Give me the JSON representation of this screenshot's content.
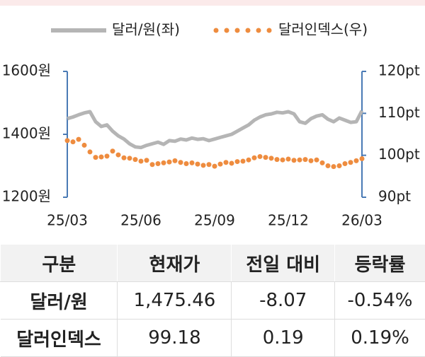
{
  "chart_data": {
    "type": "line",
    "categories": [
      "25/03",
      null,
      null,
      null,
      null,
      null,
      null,
      null,
      null,
      null,
      null,
      null,
      null,
      "25/06",
      null,
      null,
      null,
      null,
      null,
      null,
      null,
      null,
      null,
      null,
      null,
      null,
      "25/09",
      null,
      null,
      null,
      null,
      null,
      null,
      null,
      null,
      null,
      null,
      null,
      null,
      "25/12",
      null,
      null,
      null,
      null,
      null,
      null,
      null,
      null,
      null,
      null,
      null,
      null,
      "26/03"
    ],
    "series": [
      {
        "name": "달러/원(좌)",
        "color": "#b5b5b5",
        "style": "line",
        "axis": "y",
        "values": [
          1450,
          1455,
          1462,
          1468,
          1472,
          1440,
          1425,
          1430,
          1410,
          1395,
          1385,
          1370,
          1360,
          1358,
          1365,
          1370,
          1375,
          1368,
          1380,
          1378,
          1385,
          1382,
          1388,
          1384,
          1386,
          1380,
          1385,
          1390,
          1395,
          1400,
          1410,
          1420,
          1430,
          1445,
          1455,
          1462,
          1465,
          1470,
          1468,
          1472,
          1465,
          1440,
          1435,
          1450,
          1458,
          1462,
          1448,
          1440,
          1452,
          1445,
          1438,
          1440,
          1475
        ]
      },
      {
        "name": "달러인덱스(우)",
        "color": "#ee8c3f",
        "style": "dots",
        "axis": "y2",
        "values": [
          103.5,
          103.2,
          103.8,
          102.4,
          100.8,
          99.5,
          99.6,
          99.8,
          101.0,
          100.1,
          99.4,
          99.3,
          99.0,
          98.6,
          98.8,
          97.8,
          98.0,
          98.2,
          98.4,
          98.7,
          98.3,
          98.0,
          98.2,
          97.9,
          97.6,
          97.8,
          97.4,
          97.9,
          98.3,
          98.1,
          98.5,
          98.6,
          98.9,
          99.4,
          99.7,
          99.5,
          99.3,
          99.0,
          98.9,
          99.1,
          98.8,
          98.9,
          99.0,
          98.7,
          98.9,
          98.2,
          97.5,
          97.3,
          97.5,
          98.0,
          98.3,
          98.7,
          99.18
        ]
      }
    ],
    "ylim": [
      1200,
      1600
    ],
    "yticks": [
      {
        "value": 1200,
        "label": "1200원"
      },
      {
        "value": 1400,
        "label": "1400원"
      },
      {
        "value": 1600,
        "label": "1600원"
      }
    ],
    "y2lim": [
      90,
      120
    ],
    "y2ticks": [
      {
        "value": 90,
        "label": "90pt"
      },
      {
        "value": 100,
        "label": "100pt"
      },
      {
        "value": 110,
        "label": "110pt"
      },
      {
        "value": 120,
        "label": "120pt"
      }
    ],
    "axis_color": "#4a7ab5"
  },
  "table": {
    "header": [
      "구분",
      "현재가",
      "전일 대비",
      "등락률"
    ],
    "rows": [
      [
        "달러/원",
        "1,475.46",
        "-8.07",
        "-0.54%"
      ],
      [
        "달러인덱스",
        "99.18",
        "0.19",
        "0.19%"
      ]
    ]
  }
}
